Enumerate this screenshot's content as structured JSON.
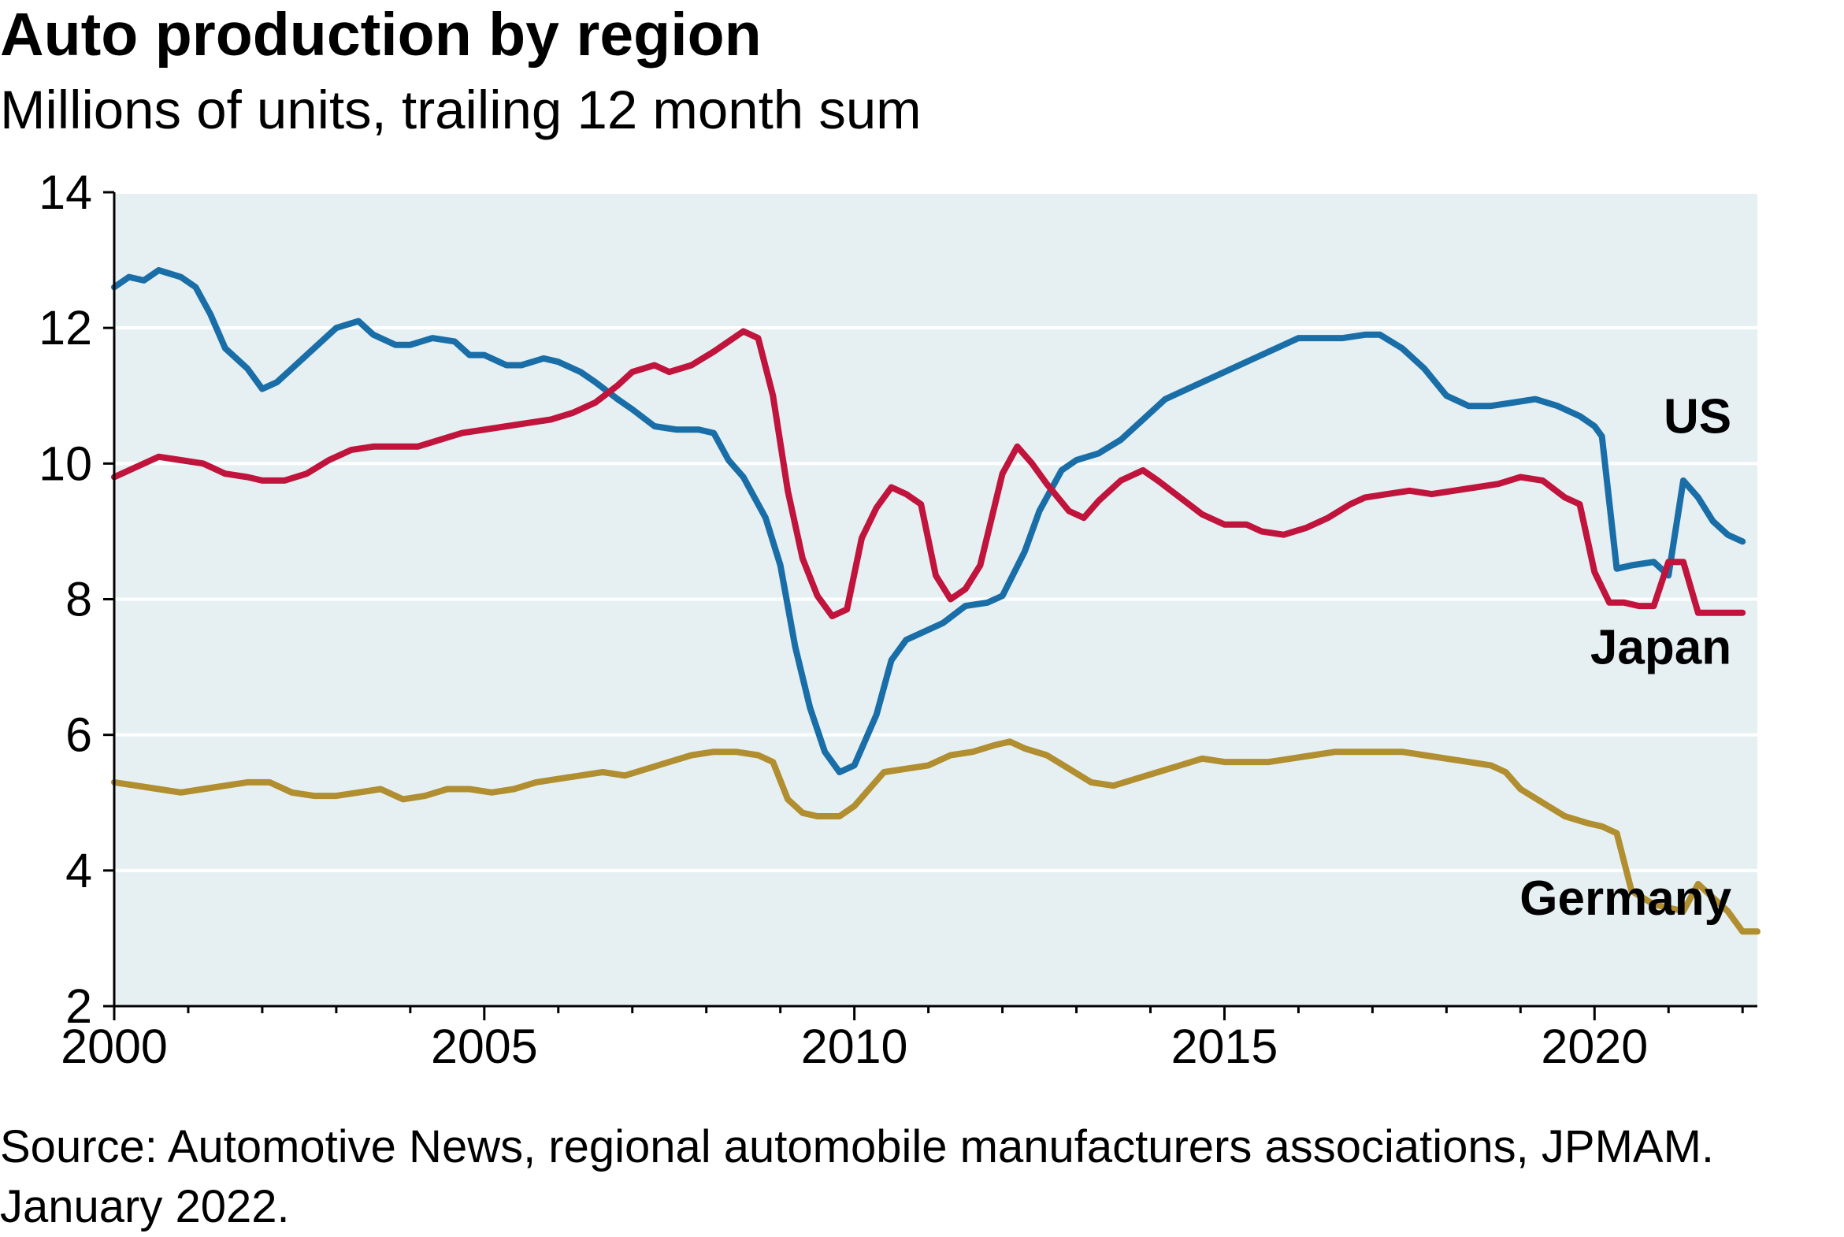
{
  "chart_data": {
    "type": "line",
    "title": "Auto production by region",
    "subtitle": "Millions of units, trailing 12 month sum",
    "source": "Source: Automotive News, regional automobile manufacturers associations, JPMAM. January 2022.",
    "xlim": [
      2000,
      2022.2
    ],
    "ylim": [
      2,
      14
    ],
    "x_ticks": [
      2000,
      2005,
      2010,
      2015,
      2020
    ],
    "y_ticks": [
      2,
      4,
      6,
      8,
      10,
      12,
      14
    ],
    "grid": "horizontal",
    "background_color": "#e6f0f3",
    "series": [
      {
        "name": "US",
        "color": "#1a6ea8",
        "x": [
          2000,
          2000.2,
          2000.4,
          2000.6,
          2000.9,
          2001.1,
          2001.3,
          2001.5,
          2001.8,
          2002.0,
          2002.2,
          2002.4,
          2002.7,
          2003.0,
          2003.3,
          2003.5,
          2003.8,
          2004.0,
          2004.3,
          2004.6,
          2004.8,
          2005.0,
          2005.3,
          2005.5,
          2005.8,
          2006.0,
          2006.3,
          2006.5,
          2006.8,
          2007.0,
          2007.3,
          2007.6,
          2007.9,
          2008.1,
          2008.3,
          2008.5,
          2008.8,
          2009.0,
          2009.2,
          2009.4,
          2009.6,
          2009.8,
          2010.0,
          2010.3,
          2010.5,
          2010.7,
          2011.0,
          2011.2,
          2011.5,
          2011.8,
          2012.0,
          2012.3,
          2012.5,
          2012.8,
          2013.0,
          2013.3,
          2013.6,
          2013.9,
          2014.2,
          2014.5,
          2014.8,
          2015.0,
          2015.3,
          2015.5,
          2015.8,
          2016.0,
          2016.3,
          2016.6,
          2016.9,
          2017.1,
          2017.4,
          2017.7,
          2018.0,
          2018.3,
          2018.6,
          2018.9,
          2019.2,
          2019.5,
          2019.8,
          2020.0,
          2020.1,
          2020.3,
          2020.5,
          2020.8,
          2021.0,
          2021.2,
          2021.4,
          2021.6,
          2021.8,
          2022.0
        ],
        "y": [
          12.6,
          12.75,
          12.7,
          12.85,
          12.75,
          12.6,
          12.2,
          11.7,
          11.4,
          11.1,
          11.2,
          11.4,
          11.7,
          12.0,
          12.1,
          11.9,
          11.75,
          11.75,
          11.85,
          11.8,
          11.6,
          11.6,
          11.45,
          11.45,
          11.55,
          11.5,
          11.35,
          11.2,
          10.95,
          10.8,
          10.55,
          10.5,
          10.5,
          10.45,
          10.05,
          9.8,
          9.2,
          8.5,
          7.3,
          6.4,
          5.75,
          5.45,
          5.55,
          6.3,
          7.1,
          7.4,
          7.55,
          7.65,
          7.9,
          7.95,
          8.05,
          8.7,
          9.3,
          9.9,
          10.05,
          10.15,
          10.35,
          10.65,
          10.95,
          11.1,
          11.25,
          11.35,
          11.5,
          11.6,
          11.75,
          11.85,
          11.85,
          11.85,
          11.9,
          11.9,
          11.7,
          11.4,
          11.0,
          10.85,
          10.85,
          10.9,
          10.95,
          10.85,
          10.7,
          10.55,
          10.4,
          8.45,
          8.5,
          8.55,
          8.35,
          9.75,
          9.5,
          9.15,
          8.95,
          8.85
        ]
      },
      {
        "name": "Japan",
        "color": "#c0143c",
        "x": [
          2000,
          2000.3,
          2000.6,
          2000.9,
          2001.2,
          2001.5,
          2001.8,
          2002.0,
          2002.3,
          2002.6,
          2002.9,
          2003.2,
          2003.5,
          2003.8,
          2004.1,
          2004.4,
          2004.7,
          2005.0,
          2005.3,
          2005.6,
          2005.9,
          2006.2,
          2006.5,
          2006.8,
          2007.0,
          2007.3,
          2007.5,
          2007.8,
          2008.1,
          2008.3,
          2008.5,
          2008.7,
          2008.9,
          2009.1,
          2009.3,
          2009.5,
          2009.7,
          2009.9,
          2010.1,
          2010.3,
          2010.5,
          2010.7,
          2010.9,
          2011.1,
          2011.3,
          2011.5,
          2011.7,
          2012.0,
          2012.2,
          2012.4,
          2012.6,
          2012.9,
          2013.1,
          2013.3,
          2013.6,
          2013.9,
          2014.1,
          2014.4,
          2014.7,
          2015.0,
          2015.3,
          2015.5,
          2015.8,
          2016.1,
          2016.4,
          2016.7,
          2016.9,
          2017.2,
          2017.5,
          2017.8,
          2018.1,
          2018.4,
          2018.7,
          2019.0,
          2019.3,
          2019.6,
          2019.8,
          2020.0,
          2020.2,
          2020.4,
          2020.6,
          2020.8,
          2021.0,
          2021.2,
          2021.4,
          2021.6,
          2021.8,
          2022.0
        ],
        "y": [
          9.8,
          9.95,
          10.1,
          10.05,
          10.0,
          9.85,
          9.8,
          9.75,
          9.75,
          9.85,
          10.05,
          10.2,
          10.25,
          10.25,
          10.25,
          10.35,
          10.45,
          10.5,
          10.55,
          10.6,
          10.65,
          10.75,
          10.9,
          11.15,
          11.35,
          11.45,
          11.35,
          11.45,
          11.65,
          11.8,
          11.95,
          11.85,
          11.0,
          9.6,
          8.6,
          8.05,
          7.75,
          7.85,
          8.9,
          9.35,
          9.65,
          9.55,
          9.4,
          8.35,
          8.0,
          8.15,
          8.5,
          9.85,
          10.25,
          10.0,
          9.7,
          9.3,
          9.2,
          9.45,
          9.75,
          9.9,
          9.75,
          9.5,
          9.25,
          9.1,
          9.1,
          9.0,
          8.95,
          9.05,
          9.2,
          9.4,
          9.5,
          9.55,
          9.6,
          9.55,
          9.6,
          9.65,
          9.7,
          9.8,
          9.75,
          9.5,
          9.4,
          8.4,
          7.95,
          7.95,
          7.9,
          7.9,
          8.55,
          8.55,
          7.8,
          7.8,
          7.8,
          7.8
        ]
      },
      {
        "name": "Germany",
        "color": "#b18e2f",
        "x": [
          2000,
          2000.3,
          2000.6,
          2000.9,
          2001.2,
          2001.5,
          2001.8,
          2002.1,
          2002.4,
          2002.7,
          2003.0,
          2003.3,
          2003.6,
          2003.9,
          2004.2,
          2004.5,
          2004.8,
          2005.1,
          2005.4,
          2005.7,
          2006.0,
          2006.3,
          2006.6,
          2006.9,
          2007.2,
          2007.5,
          2007.8,
          2008.1,
          2008.4,
          2008.7,
          2008.9,
          2009.1,
          2009.3,
          2009.5,
          2009.8,
          2010.0,
          2010.2,
          2010.4,
          2010.7,
          2011.0,
          2011.3,
          2011.6,
          2011.9,
          2012.1,
          2012.3,
          2012.6,
          2012.9,
          2013.2,
          2013.5,
          2013.8,
          2014.1,
          2014.4,
          2014.7,
          2015.0,
          2015.3,
          2015.6,
          2015.9,
          2016.2,
          2016.5,
          2016.8,
          2017.1,
          2017.4,
          2017.7,
          2018.0,
          2018.3,
          2018.6,
          2018.8,
          2019.0,
          2019.3,
          2019.6,
          2019.9,
          2020.1,
          2020.3,
          2020.5,
          2020.8,
          2021.0,
          2021.2,
          2021.4,
          2021.6,
          2021.8,
          2022.0,
          2022.2
        ],
        "y": [
          5.3,
          5.25,
          5.2,
          5.15,
          5.2,
          5.25,
          5.3,
          5.3,
          5.15,
          5.1,
          5.1,
          5.15,
          5.2,
          5.05,
          5.1,
          5.2,
          5.2,
          5.15,
          5.2,
          5.3,
          5.35,
          5.4,
          5.45,
          5.4,
          5.5,
          5.6,
          5.7,
          5.75,
          5.75,
          5.7,
          5.6,
          5.05,
          4.85,
          4.8,
          4.8,
          4.95,
          5.2,
          5.45,
          5.5,
          5.55,
          5.7,
          5.75,
          5.85,
          5.9,
          5.8,
          5.7,
          5.5,
          5.3,
          5.25,
          5.35,
          5.45,
          5.55,
          5.65,
          5.6,
          5.6,
          5.6,
          5.65,
          5.7,
          5.75,
          5.75,
          5.75,
          5.75,
          5.7,
          5.65,
          5.6,
          5.55,
          5.45,
          5.2,
          5.0,
          4.8,
          4.7,
          4.65,
          4.55,
          3.7,
          3.5,
          3.45,
          3.4,
          3.8,
          3.6,
          3.4,
          3.1,
          3.1
        ]
      }
    ],
    "labels": [
      {
        "text": "US",
        "x": 2021.85,
        "y": 10.45
      },
      {
        "text": "Japan",
        "x": 2021.85,
        "y": 7.05
      },
      {
        "text": "Germany",
        "x": 2021.85,
        "y": 3.35
      }
    ]
  }
}
